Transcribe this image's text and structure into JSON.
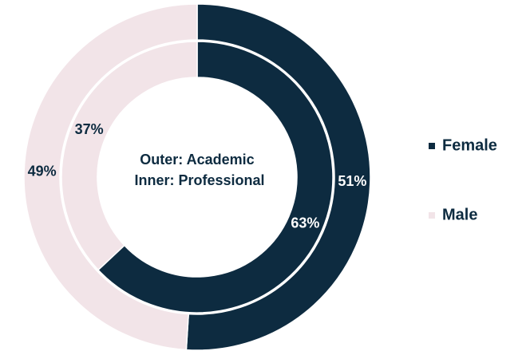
{
  "chart_data": {
    "type": "donut",
    "annotations": [
      "Outer: Academic",
      "Inner: Professional"
    ],
    "series": [
      {
        "name": "Female",
        "color": "#0d2b40",
        "label_color": "#ffffff",
        "values": [
          51,
          63
        ],
        "value_labels": [
          "51%",
          "63%"
        ]
      },
      {
        "name": "Male",
        "color": "#f2e4e8",
        "label_color": "#0d2b40",
        "values": [
          49,
          37
        ],
        "value_labels": [
          "49%",
          "37%"
        ]
      }
    ],
    "legend": "right"
  }
}
